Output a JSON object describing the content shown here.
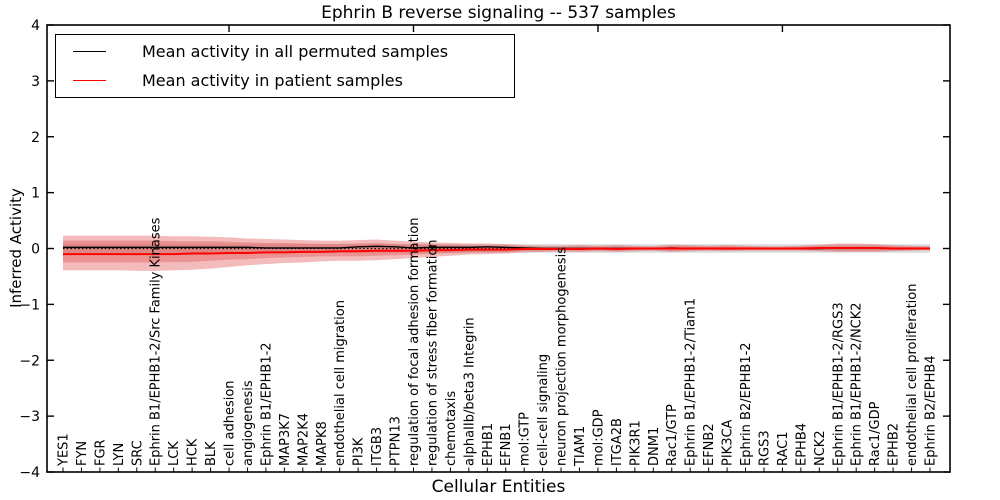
{
  "title": "Ephrin B reverse signaling -- 537 samples",
  "legend": {
    "items": [
      {
        "label": "Mean activity in all permuted samples",
        "color": "#000000"
      },
      {
        "label": "Mean activity in patient samples",
        "color": "#ff0000"
      }
    ],
    "position": "upper left"
  },
  "chart_data": {
    "type": "line",
    "title": "Ephrin B reverse signaling -- 537 samples",
    "xlabel": "Cellular Entities",
    "ylabel": "Inferred Activity",
    "ylim": [
      -4,
      4
    ],
    "ytick_labels": [
      "4",
      "3",
      "2",
      "1",
      "0",
      "−1",
      "−2",
      "−3",
      "−4"
    ],
    "ytick_values": [
      4,
      3,
      2,
      1,
      0,
      -1,
      -2,
      -3,
      -4
    ],
    "xticks_top": [
      10,
      20,
      30,
      40
    ],
    "grid": false,
    "legend_position": "upper left",
    "categories": [
      "YES1",
      "FYN",
      "FGR",
      "LYN",
      "SRC",
      "Ephrin B1/EPHB1-2/Src Family Kinases",
      "LCK",
      "HCK",
      "BLK",
      "cell adhesion",
      "angiogenesis",
      "Ephrin B1/EPHB1-2",
      "MAP3K7",
      "MAP2K4",
      "MAPK8",
      "endothelial cell migration",
      "PI3K",
      "ITGB3",
      "PTPN13",
      "regulation of focal adhesion formation",
      "regulation of stress fiber formation",
      "chemotaxis",
      "alphaIIb/beta3 Integrin",
      "EPHB1",
      "EFNB1",
      "mol:GTP",
      "cell-cell signaling",
      "neuron projection morphogenesis",
      "TIAM1",
      "mol:GDP",
      "ITGA2B",
      "PIK3R1",
      "DNM1",
      "Rac1/GTP",
      "Ephrin B1/EPHB1-2/Tiam1",
      "EFNB2",
      "PIK3CA",
      "Ephrin B2/EPHB1-2",
      "RGS3",
      "RAC1",
      "EPHB4",
      "NCK2",
      "Ephrin B1/EPHB1-2/RGS3",
      "Ephrin B1/EPHB1-2/NCK2",
      "Rac1/GDP",
      "EPHB2",
      "endothelial cell proliferation",
      "Ephrin B2/EPHB4"
    ],
    "series": [
      {
        "name": "Mean activity in all permuted samples",
        "color": "#000000",
        "width": 1.4,
        "values": [
          0.02,
          0.02,
          0.02,
          0.02,
          0.02,
          0.02,
          0.02,
          0.02,
          0.02,
          0.02,
          0.02,
          0.01,
          0.01,
          0.01,
          0.01,
          0.01,
          0.03,
          0.04,
          0.03,
          0.01,
          0.02,
          0.02,
          0.02,
          0.03,
          0.02,
          0.01,
          0,
          0,
          0,
          0,
          0,
          0,
          0,
          0.01,
          0,
          0,
          0,
          0,
          0,
          0,
          0,
          0,
          0.01,
          0.01,
          0.01,
          0,
          0,
          0
        ]
      },
      {
        "name": "Mean activity in patient samples",
        "color": "#ff0000",
        "width": 2,
        "values": [
          -0.1,
          -0.1,
          -0.1,
          -0.1,
          -0.1,
          -0.1,
          -0.1,
          -0.09,
          -0.09,
          -0.08,
          -0.08,
          -0.07,
          -0.07,
          -0.06,
          -0.06,
          -0.05,
          -0.05,
          -0.04,
          -0.04,
          -0.04,
          -0.03,
          -0.03,
          -0.02,
          -0.02,
          -0.02,
          -0.01,
          -0.01,
          -0.01,
          -0.01,
          0,
          -0.01,
          0,
          0,
          0,
          0,
          0,
          0,
          0,
          0,
          0,
          0,
          0.01,
          0.01,
          0.01,
          0.01,
          0,
          0,
          0
        ]
      }
    ],
    "bands": [
      {
        "name": "permuted-spread",
        "color": "#bbbbbb",
        "opacity": 0.55,
        "upper": 0.075,
        "lower": -0.075
      },
      {
        "name": "patient-spread-outer",
        "color": "#e25555",
        "opacity": 0.4,
        "upper": [
          0.23,
          0.23,
          0.23,
          0.23,
          0.23,
          0.23,
          0.22,
          0.22,
          0.21,
          0.2,
          0.18,
          0.17,
          0.16,
          0.15,
          0.14,
          0.14,
          0.15,
          0.16,
          0.14,
          0.12,
          0.11,
          0.1,
          0.09,
          0.09,
          0.08,
          0.06,
          0.05,
          0.05,
          0.06,
          0.05,
          0.06,
          0.05,
          0.04,
          0.07,
          0.06,
          0.05,
          0.06,
          0.05,
          0.04,
          0.04,
          0.05,
          0.07,
          0.09,
          0.09,
          0.08,
          0.06,
          0.05,
          0.04
        ],
        "lower": [
          -0.39,
          -0.39,
          -0.39,
          -0.39,
          -0.4,
          -0.4,
          -0.39,
          -0.38,
          -0.36,
          -0.33,
          -0.3,
          -0.28,
          -0.26,
          -0.25,
          -0.23,
          -0.22,
          -0.22,
          -0.21,
          -0.19,
          -0.17,
          -0.15,
          -0.13,
          -0.11,
          -0.1,
          -0.09,
          -0.07,
          -0.06,
          -0.05,
          -0.06,
          -0.05,
          -0.06,
          -0.05,
          -0.04,
          -0.06,
          -0.05,
          -0.04,
          -0.05,
          -0.04,
          -0.04,
          -0.04,
          -0.04,
          -0.05,
          -0.06,
          -0.06,
          -0.06,
          -0.05,
          -0.04,
          -0.03
        ]
      },
      {
        "name": "patient-spread-inner",
        "color": "#e25555",
        "opacity": 0.4,
        "upper": [
          0.14,
          0.14,
          0.14,
          0.14,
          0.14,
          0.14,
          0.13,
          0.13,
          0.13,
          0.12,
          0.11,
          0.1,
          0.1,
          0.09,
          0.08,
          0.08,
          0.09,
          0.1,
          0.08,
          0.07,
          0.07,
          0.06,
          0.05,
          0.05,
          0.05,
          0.04,
          0.03,
          0.03,
          0.04,
          0.03,
          0.04,
          0.03,
          0.02,
          0.04,
          0.04,
          0.03,
          0.04,
          0.03,
          0.02,
          0.02,
          0.03,
          0.04,
          0.05,
          0.05,
          0.05,
          0.04,
          0.03,
          0.02
        ],
        "lower": [
          -0.25,
          -0.25,
          -0.25,
          -0.25,
          -0.25,
          -0.25,
          -0.24,
          -0.24,
          -0.22,
          -0.2,
          -0.19,
          -0.17,
          -0.16,
          -0.15,
          -0.14,
          -0.14,
          -0.14,
          -0.13,
          -0.12,
          -0.11,
          -0.09,
          -0.08,
          -0.07,
          -0.06,
          -0.06,
          -0.04,
          -0.04,
          -0.03,
          -0.04,
          -0.03,
          -0.04,
          -0.03,
          -0.02,
          -0.04,
          -0.03,
          -0.02,
          -0.03,
          -0.02,
          -0.02,
          -0.02,
          -0.02,
          -0.03,
          -0.04,
          -0.04,
          -0.04,
          -0.03,
          -0.02,
          -0.02
        ]
      }
    ],
    "zero_line": {
      "style": "dotted",
      "color": "#000000",
      "y": 0
    }
  }
}
